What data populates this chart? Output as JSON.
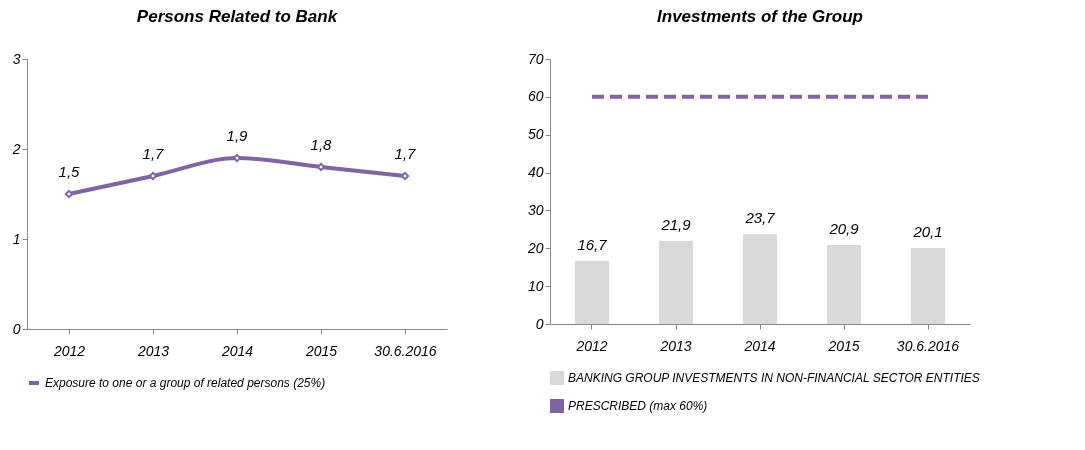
{
  "chart_data": [
    {
      "type": "line",
      "title": "Persons Related to Bank",
      "categories": [
        "2012",
        "2013",
        "2014",
        "2015",
        "30.6.2016"
      ],
      "series": [
        {
          "name": "Exposure to one or a group of related persons (25%)",
          "color": "#8064a2",
          "values": [
            1.5,
            1.7,
            1.9,
            1.8,
            1.7
          ],
          "value_labels": [
            "1,5",
            "1,7",
            "1,9",
            "1,8",
            "1,7"
          ]
        }
      ],
      "ylim": [
        0,
        3
      ],
      "yticks": [
        0,
        1,
        2,
        3
      ],
      "grid": false,
      "legend": "bottom",
      "marker": "diamond"
    },
    {
      "type": "bar",
      "title": "Investments of the Group",
      "categories": [
        "2012",
        "2013",
        "2014",
        "2015",
        "30.6.2016"
      ],
      "series": [
        {
          "name": "BANKING GROUP INVESTMENTS IN NON-FINANCIAL SECTOR ENTITIES",
          "color": "#d9d9d9",
          "values": [
            16.7,
            21.9,
            23.7,
            20.9,
            20.1
          ],
          "value_labels": [
            "16,7",
            "21,9",
            "23,7",
            "20,9",
            "20,1"
          ]
        },
        {
          "name": "PRESCRIBED (max 60%)",
          "type": "line",
          "color": "#8064a2",
          "line_style": "dashed",
          "values": [
            60,
            60,
            60,
            60,
            60
          ]
        }
      ],
      "ylim": [
        0,
        70
      ],
      "yticks": [
        0,
        10,
        20,
        30,
        40,
        50,
        60,
        70
      ],
      "grid": false,
      "legend": "bottom"
    }
  ]
}
